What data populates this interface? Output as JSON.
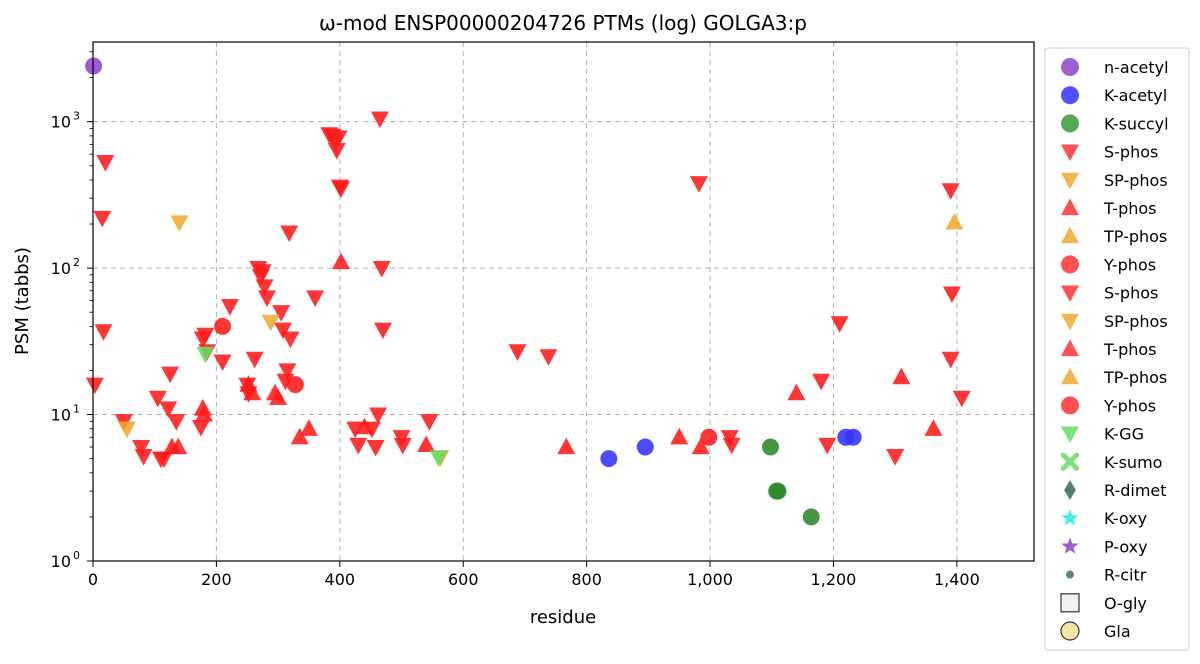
{
  "chart_data": {
    "type": "scatter",
    "title": "ω-mod ENSP00000204726 PTMs (log) GOLGA3:p",
    "xlabel": "residue",
    "ylabel": "PSM (tabbs)",
    "x_scale": "linear",
    "y_scale": "log",
    "xlim": [
      0,
      1525
    ],
    "ylim": [
      1,
      3500
    ],
    "grid": true,
    "legend_position": "right-outside",
    "x_ticks": [
      {
        "value": 0,
        "label": "0"
      },
      {
        "value": 200,
        "label": "200"
      },
      {
        "value": 400,
        "label": "400"
      },
      {
        "value": 600,
        "label": "600"
      },
      {
        "value": 800,
        "label": "800"
      },
      {
        "value": 1000,
        "label": "1,000"
      },
      {
        "value": 1200,
        "label": "1,200"
      },
      {
        "value": 1400,
        "label": "1,400"
      }
    ],
    "y_ticks": [
      {
        "value": 1,
        "base": "10",
        "exp": "0"
      },
      {
        "value": 10,
        "base": "10",
        "exp": "1"
      },
      {
        "value": 100,
        "base": "10",
        "exp": "2"
      },
      {
        "value": 1000,
        "base": "10",
        "exp": "3"
      }
    ],
    "legend": [
      {
        "label": "n-acetyl",
        "marker": "circle",
        "color": "#8e44c7"
      },
      {
        "label": "K-acetyl",
        "marker": "circle",
        "color": "#3333ff"
      },
      {
        "label": "K-succyl",
        "marker": "circle",
        "color": "#3a9a3a"
      },
      {
        "label": "S-phos",
        "marker": "triangle-down",
        "color": "#ff3333"
      },
      {
        "label": "SP-phos",
        "marker": "triangle-down",
        "color": "#f0a830"
      },
      {
        "label": "T-phos",
        "marker": "triangle-up",
        "color": "#ff3333"
      },
      {
        "label": "TP-phos",
        "marker": "triangle-up",
        "color": "#f0a830"
      },
      {
        "label": "Y-phos",
        "marker": "circle",
        "color": "#ff3333"
      },
      {
        "label": "S-phos",
        "marker": "triangle-down",
        "color": "#ff3333"
      },
      {
        "label": "SP-phos",
        "marker": "triangle-down",
        "color": "#f0a830"
      },
      {
        "label": "T-phos",
        "marker": "triangle-up",
        "color": "#ff3333"
      },
      {
        "label": "TP-phos",
        "marker": "triangle-up",
        "color": "#f0a830"
      },
      {
        "label": "Y-phos",
        "marker": "circle",
        "color": "#ff3333"
      },
      {
        "label": "K-GG",
        "marker": "triangle-down",
        "color": "#66dd66"
      },
      {
        "label": "K-sumo",
        "marker": "x",
        "color": "#66dd66"
      },
      {
        "label": "R-dimet",
        "marker": "diamond",
        "color": "#2f6b4f"
      },
      {
        "label": "K-oxy",
        "marker": "star",
        "color": "#22e8e8"
      },
      {
        "label": "P-oxy",
        "marker": "star",
        "color": "#8e44c7"
      },
      {
        "label": "R-citr",
        "marker": "small-circle",
        "color": "#3a7a5a"
      },
      {
        "label": "O-gly",
        "marker": "square",
        "color": "#f0f0f0"
      },
      {
        "label": "Gla",
        "marker": "circle-outline",
        "color": "#f5e6a8"
      }
    ],
    "series": [
      {
        "type": "n-acetyl",
        "marker": "circle",
        "color": "#8e44c7",
        "points": [
          [
            1,
            2400
          ]
        ]
      },
      {
        "type": "K-acetyl",
        "marker": "circle",
        "color": "#3333ff",
        "points": [
          [
            836,
            5
          ],
          [
            895,
            6
          ],
          [
            1220,
            7
          ],
          [
            1232,
            7
          ]
        ]
      },
      {
        "type": "K-succyl",
        "marker": "circle",
        "color": "#2a8a2a",
        "points": [
          [
            1098,
            6
          ],
          [
            1108,
            3
          ],
          [
            1110,
            3
          ],
          [
            1164,
            2
          ]
        ]
      },
      {
        "type": "S-phos",
        "marker": "triangle-down",
        "color": "#ff1a1a",
        "points": [
          [
            3,
            16
          ],
          [
            15,
            220
          ],
          [
            17,
            37
          ],
          [
            20,
            530
          ],
          [
            50,
            9
          ],
          [
            78,
            6
          ],
          [
            82,
            5.2
          ],
          [
            105,
            13
          ],
          [
            110,
            5
          ],
          [
            115,
            5
          ],
          [
            122,
            11
          ],
          [
            125,
            19
          ],
          [
            135,
            9
          ],
          [
            175,
            8.2
          ],
          [
            178,
            33
          ],
          [
            182,
            35
          ],
          [
            185,
            27
          ],
          [
            210,
            23
          ],
          [
            222,
            55
          ],
          [
            250,
            16
          ],
          [
            252,
            14
          ],
          [
            262,
            24
          ],
          [
            268,
            100
          ],
          [
            272,
            88
          ],
          [
            275,
            95
          ],
          [
            278,
            75
          ],
          [
            282,
            63
          ],
          [
            305,
            50
          ],
          [
            308,
            38
          ],
          [
            312,
            17
          ],
          [
            315,
            20
          ],
          [
            318,
            175
          ],
          [
            320,
            33
          ],
          [
            360,
            63
          ],
          [
            383,
            820
          ],
          [
            388,
            800
          ],
          [
            392,
            730
          ],
          [
            395,
            640
          ],
          [
            398,
            780
          ],
          [
            400,
            360
          ],
          [
            402,
            350
          ],
          [
            425,
            8
          ],
          [
            430,
            6.2
          ],
          [
            452,
            8
          ],
          [
            458,
            6
          ],
          [
            462,
            10
          ],
          [
            465,
            1050
          ],
          [
            468,
            100
          ],
          [
            470,
            38
          ],
          [
            500,
            7
          ],
          [
            502,
            6.2
          ],
          [
            545,
            9
          ],
          [
            688,
            27
          ],
          [
            738,
            25
          ],
          [
            982,
            380
          ],
          [
            1032,
            7
          ],
          [
            1035,
            6.2
          ],
          [
            1190,
            6.2
          ],
          [
            1210,
            42
          ],
          [
            1180,
            17
          ],
          [
            1300,
            5.2
          ],
          [
            1390,
            340
          ],
          [
            1392,
            67
          ],
          [
            1390,
            24
          ],
          [
            1408,
            13
          ]
        ]
      },
      {
        "type": "SP-phos",
        "marker": "triangle-down",
        "color": "#f0a830",
        "points": [
          [
            55,
            8
          ],
          [
            140,
            205
          ],
          [
            288,
            43
          ],
          [
            563,
            5.1
          ]
        ]
      },
      {
        "type": "T-phos",
        "marker": "triangle-up",
        "color": "#ff1a1a",
        "points": [
          [
            128,
            6
          ],
          [
            138,
            6
          ],
          [
            178,
            11
          ],
          [
            180,
            10
          ],
          [
            252,
            16
          ],
          [
            258,
            14
          ],
          [
            295,
            14
          ],
          [
            300,
            13
          ],
          [
            335,
            7
          ],
          [
            350,
            8
          ],
          [
            402,
            110
          ],
          [
            440,
            8.2
          ],
          [
            540,
            6.2
          ],
          [
            767,
            6
          ],
          [
            950,
            7
          ],
          [
            985,
            6
          ],
          [
            1140,
            14
          ],
          [
            1310,
            18
          ],
          [
            1362,
            8
          ]
        ]
      },
      {
        "type": "TP-phos",
        "marker": "triangle-up",
        "color": "#f0a830",
        "points": [
          [
            1396,
            205
          ]
        ]
      },
      {
        "type": "Y-phos",
        "marker": "circle",
        "color": "#ff1a1a",
        "points": [
          [
            210,
            40
          ],
          [
            328,
            16
          ],
          [
            998,
            7
          ]
        ]
      },
      {
        "type": "K-GG",
        "marker": "triangle-down",
        "color": "#66dd66",
        "points": [
          [
            182,
            26
          ],
          [
            560,
            5.1
          ]
        ]
      }
    ]
  }
}
